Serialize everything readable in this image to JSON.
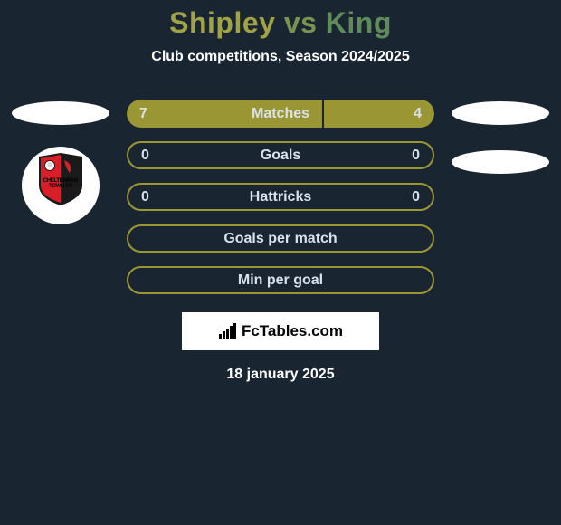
{
  "title": {
    "player1": "Shipley",
    "vs": "vs",
    "player2": "King",
    "player1_color": "#a0a245",
    "vs_color": "#7a944f",
    "player2_color": "#5f8a5a"
  },
  "subtitle": "Club competitions, Season 2024/2025",
  "subtitle_color": "#ffffff",
  "date": "18 january 2025",
  "brand": {
    "text": "FcTables.com",
    "icon_name": "bar-chart-icon"
  },
  "colors": {
    "background": "#1a2532",
    "bar_fill": "#9a9634",
    "bar_border": "#9a9634",
    "bar_empty_border": "#9a9634",
    "text_on_bar": "#d9e2ec",
    "ellipse": "#ffffff"
  },
  "stats": [
    {
      "label": "Matches",
      "left_value": "7",
      "right_value": "4",
      "left_pct": 63.6,
      "right_pct": 36.4,
      "has_border": false
    },
    {
      "label": "Goals",
      "left_value": "0",
      "right_value": "0",
      "left_pct": 0,
      "right_pct": 0,
      "has_border": true
    },
    {
      "label": "Hattricks",
      "left_value": "0",
      "right_value": "0",
      "left_pct": 0,
      "right_pct": 0,
      "has_border": true
    },
    {
      "label": "Goals per match",
      "left_value": "",
      "right_value": "",
      "left_pct": 0,
      "right_pct": 0,
      "has_border": true
    },
    {
      "label": "Min per goal",
      "left_value": "",
      "right_value": "",
      "left_pct": 0,
      "right_pct": 0,
      "has_border": true
    }
  ],
  "badge": {
    "text_line1": "CHELTENHAM",
    "text_line2": "TOWN FC",
    "shield_colors": {
      "left": "#d91e2a",
      "right": "#1a1a1a",
      "outline": "#1a1a1a",
      "ball": "#ffffff"
    }
  }
}
